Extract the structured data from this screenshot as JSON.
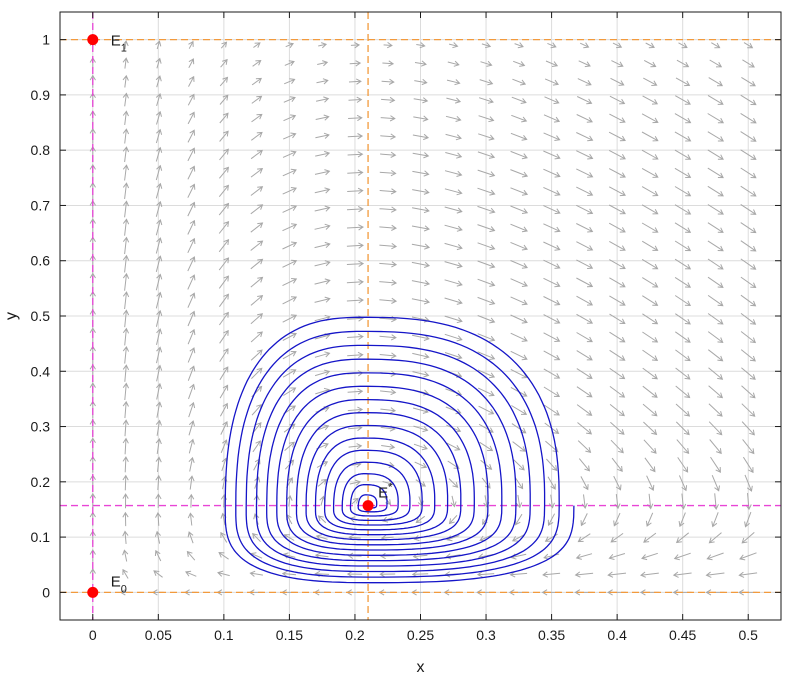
{
  "chart_data": {
    "type": "line",
    "title": "",
    "xlabel": "x",
    "ylabel": "y",
    "xlim": [
      -0.025,
      0.525
    ],
    "ylim": [
      -0.05,
      1.05
    ],
    "xticks": [
      0,
      0.05,
      0.1,
      0.15,
      0.2,
      0.25,
      0.3,
      0.35,
      0.4,
      0.45,
      0.5
    ],
    "xtick_labels": [
      "0",
      "0.05",
      "0.1",
      "0.15",
      "0.2",
      "0.25",
      "0.3",
      "0.35",
      "0.4",
      "0.45",
      "0.5"
    ],
    "yticks": [
      0,
      0.1,
      0.2,
      0.3,
      0.4,
      0.5,
      0.6,
      0.7,
      0.8,
      0.9,
      1
    ],
    "ytick_labels": [
      "0",
      "0.1",
      "0.2",
      "0.3",
      "0.4",
      "0.5",
      "0.6",
      "0.7",
      "0.8",
      "0.9",
      "1"
    ],
    "grid": true,
    "colors": {
      "trajectory": "#1515c8",
      "x_nullcline": "#f29a3d",
      "y_nullcline": "#e845d6",
      "equilibrium": "#ff0000",
      "vector_field": "#a8a8a8",
      "grid": "#dcdcdc"
    },
    "equilibria": [
      {
        "label": "E",
        "sub": "0",
        "x": 0,
        "y": 0
      },
      {
        "label": "E",
        "sub": "1",
        "x": 0,
        "y": 1
      },
      {
        "label": "E",
        "sub": "*",
        "x": 0.21,
        "y": 0.157
      }
    ],
    "nullclines": {
      "x_nullclines": [
        {
          "orientation": "vertical",
          "x": 0.21
        },
        {
          "orientation": "horizontal",
          "y": 0
        },
        {
          "orientation": "horizontal",
          "y": 1
        }
      ],
      "y_nullclines": [
        {
          "orientation": "vertical",
          "x": 0
        },
        {
          "orientation": "horizontal",
          "y": 0.157
        }
      ]
    },
    "trajectory": {
      "center": [
        0.21,
        0.157
      ],
      "turns": 16,
      "outer_extent": {
        "x_min": 0.097,
        "x_max": 0.367,
        "y_min": 0.015,
        "y_max": 0.517
      }
    },
    "vector_field": {
      "x_start": 0,
      "x_step": 0.025,
      "x_count": 21,
      "y_start": 0,
      "y_step": 0.033,
      "y_count": 31
    }
  }
}
